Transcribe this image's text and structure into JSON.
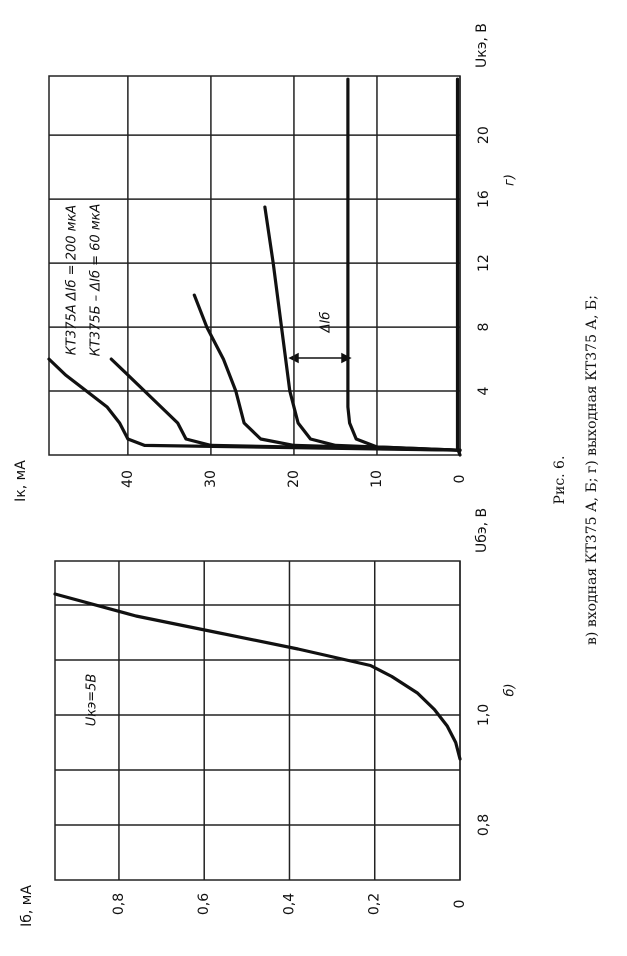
{
  "chart_data": [
    {
      "type": "line",
      "label": "б)",
      "xlabel": "Uбэ, В",
      "ylabel": "Iб, мА",
      "xlim": [
        0.7,
        1.28
      ],
      "xticks": [
        {
          "value": 0.8,
          "label": "0,8"
        },
        {
          "value": 0.9,
          "label": null
        },
        {
          "value": 1.0,
          "label": "1,0"
        },
        {
          "value": 1.1,
          "label": null
        },
        {
          "value": 1.2,
          "label": null
        }
      ],
      "ylim": [
        0,
        0.95
      ],
      "yticks": [
        0,
        {
          "value": 0.2,
          "label": "0,2"
        },
        {
          "value": 0.4,
          "label": "0,4"
        },
        {
          "value": 0.6,
          "label": "0,6"
        },
        {
          "value": 0.8,
          "label": "0,8"
        }
      ],
      "grid": true,
      "color": "#111111",
      "annotations": [
        "Uкэ=5В"
      ],
      "series": [
        {
          "x": [
            0.92,
            0.95,
            0.98,
            1.01,
            1.04,
            1.07,
            1.09,
            1.12,
            1.15,
            1.18,
            1.22
          ],
          "values": [
            0,
            0.01,
            0.03,
            0.06,
            0.1,
            0.16,
            0.21,
            0.38,
            0.57,
            0.76,
            0.95
          ]
        }
      ]
    },
    {
      "type": "line",
      "label": "г)",
      "xlabel": "Uкэ, В",
      "ylabel": "Iк, мА",
      "xlim": [
        0,
        23.7
      ],
      "xticks": [
        4,
        8,
        12,
        16,
        20
      ],
      "ylim": [
        0,
        49.5
      ],
      "yticks": [
        0,
        10,
        20,
        30,
        40
      ],
      "grid": true,
      "color": "#111111",
      "annotations": [
        "КТ375А ΔIб = 200 мкА",
        "КТ375Б – ΔIб = 60 мкА",
        "ΔIб"
      ],
      "series": [
        {
          "x": [
            0,
            0.4,
            23.5
          ],
          "values": [
            0,
            0.3,
            0.3
          ]
        },
        {
          "x": [
            0.3,
            0.5,
            1,
            2,
            3,
            23.5
          ],
          "values": [
            0,
            10,
            12.5,
            13.3,
            13.5,
            13.5
          ]
        },
        {
          "x": [
            0.3,
            0.6,
            1,
            2,
            4,
            8,
            12,
            15.5
          ],
          "values": [
            0,
            15,
            18,
            19.5,
            20.5,
            21.5,
            22.5,
            23.5
          ]
        },
        {
          "x": [
            0.3,
            0.6,
            1,
            2,
            4,
            6,
            8,
            10
          ],
          "values": [
            0,
            20,
            24,
            26,
            27,
            28.5,
            30.5,
            32
          ]
        },
        {
          "x": [
            0.3,
            0.6,
            1,
            2,
            3,
            4,
            5,
            6
          ],
          "values": [
            0,
            30,
            33,
            34,
            36,
            38,
            40,
            42
          ]
        },
        {
          "x": [
            0.3,
            0.6,
            1,
            2,
            3,
            4,
            5,
            6
          ],
          "values": [
            0,
            38,
            40,
            41,
            42.5,
            45,
            47.5,
            49.5
          ]
        }
      ]
    }
  ],
  "caption": {
    "figure": "Рис. 6.",
    "text": "в) входная КТ375 А, Б; г) выходная КТ375 А, Б;"
  }
}
